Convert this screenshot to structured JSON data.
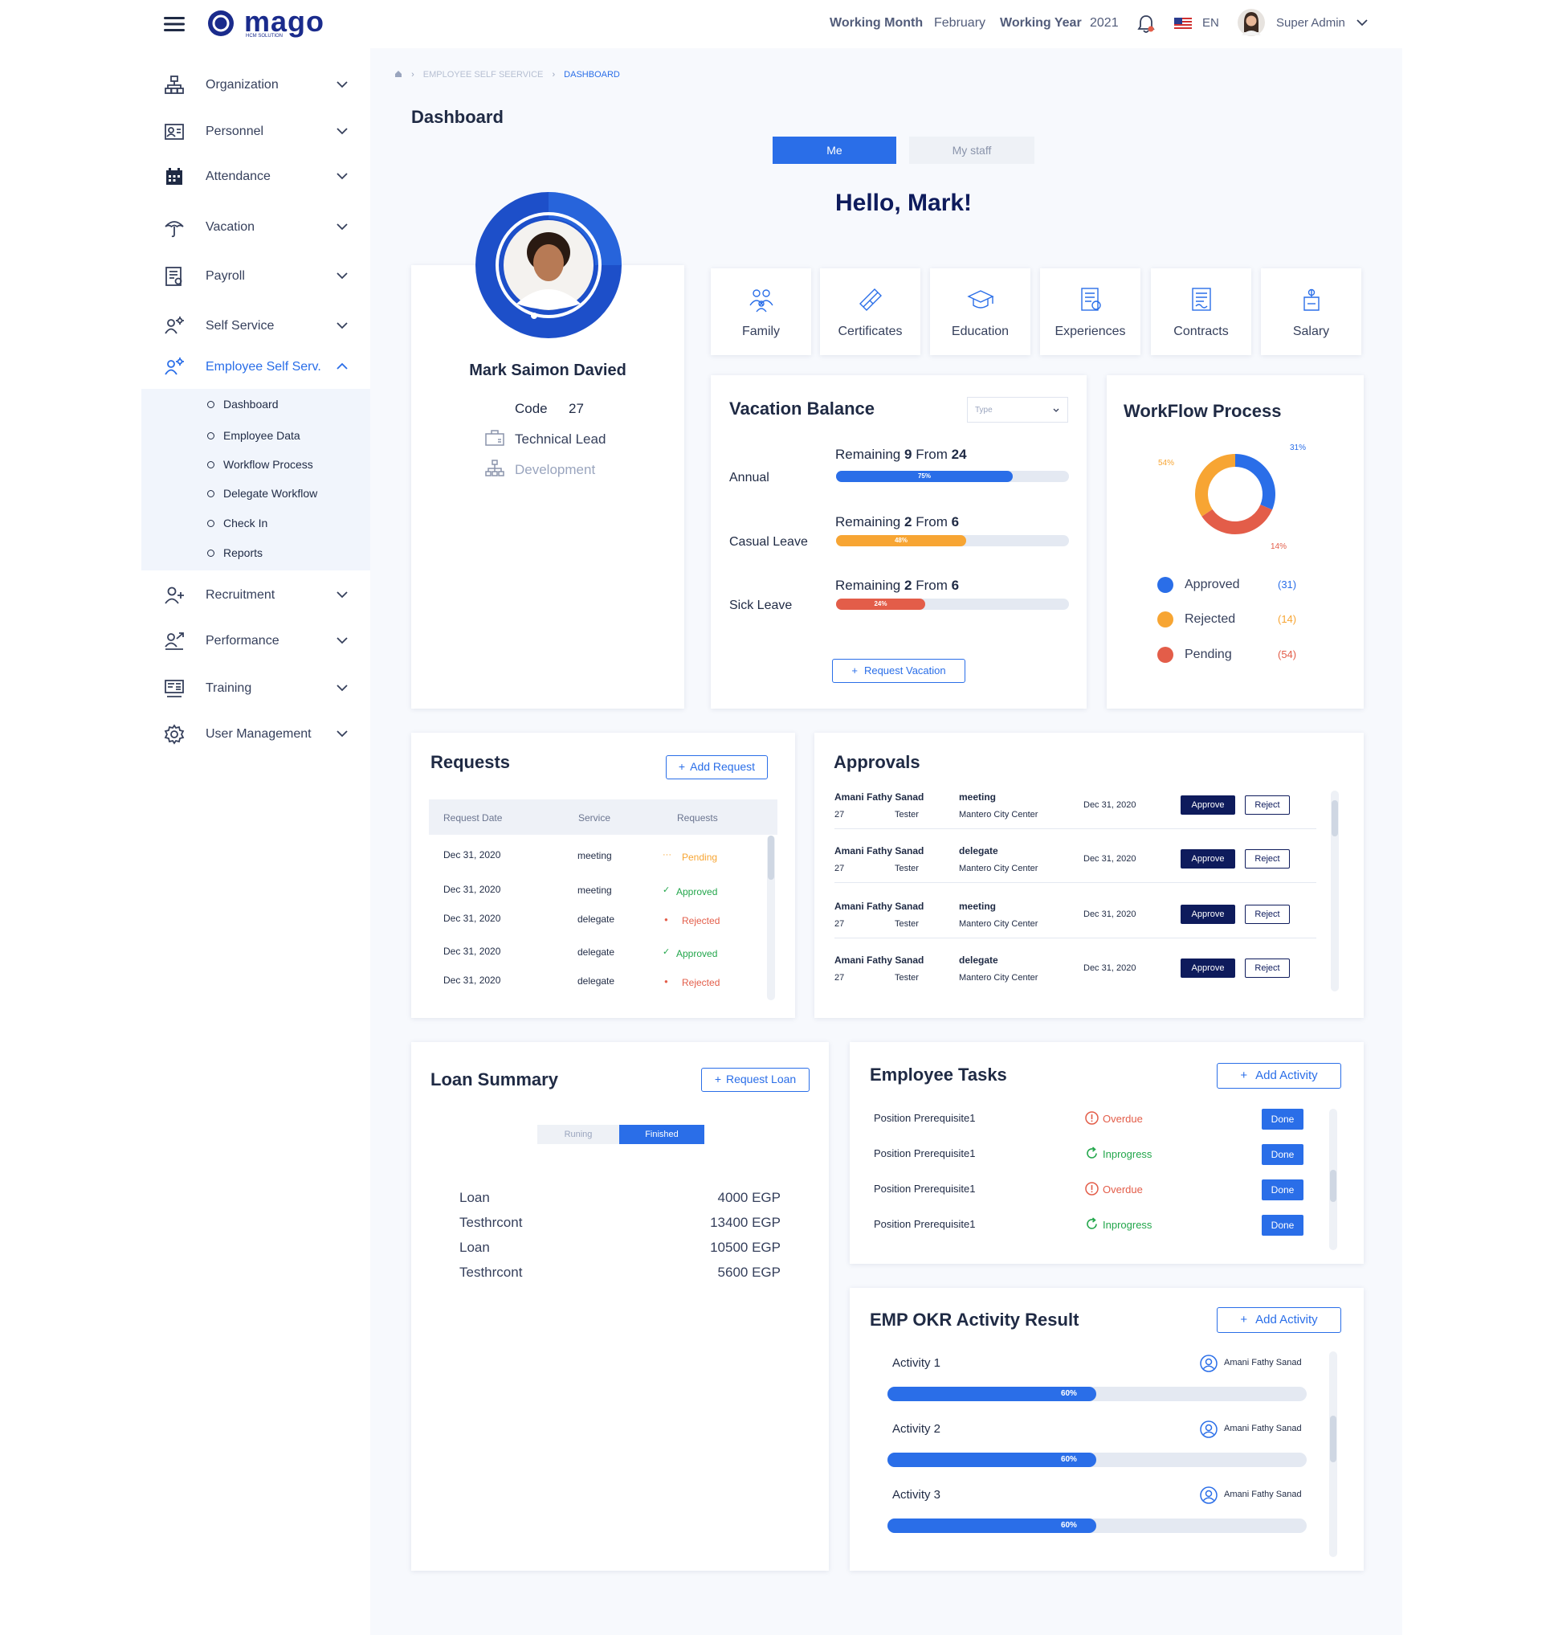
{
  "topbar": {
    "logo_text": "mago",
    "logo_sub": "HCM SOLUTION",
    "working_month_label": "Working Month",
    "working_month_value": "February",
    "working_year_label": "Working Year",
    "working_year_value": "2021",
    "language": "EN",
    "user_name": "Super Admin"
  },
  "sidebar": {
    "items": [
      {
        "label": "Organization",
        "icon": "org-chart-icon"
      },
      {
        "label": "Personnel",
        "icon": "id-card-icon"
      },
      {
        "label": "Attendance",
        "icon": "calendar-icon"
      },
      {
        "label": "Vacation",
        "icon": "umbrella-icon"
      },
      {
        "label": "Payroll",
        "icon": "payroll-icon"
      },
      {
        "label": "Self Service",
        "icon": "self-service-icon"
      },
      {
        "label": "Employee Self Serv.",
        "icon": "employee-self-service-icon"
      },
      {
        "label": "Recruitment",
        "icon": "add-user-icon"
      },
      {
        "label": "Performance",
        "icon": "performance-icon"
      },
      {
        "label": "Training",
        "icon": "training-icon"
      },
      {
        "label": "User  Management",
        "icon": "gear-icon"
      }
    ],
    "submenu": [
      "Dashboard",
      "Employee Data",
      "Workflow Process",
      "Delegate Workflow",
      "Check In",
      "Reports"
    ],
    "active_color": "#2a6ee8"
  },
  "breadcrumb": {
    "parent": "EMPLOYEE SELF SEERVICE",
    "current": "DASHBOARD"
  },
  "page_title": "Dashboard",
  "tabs": {
    "me": "Me",
    "staff": "My staff"
  },
  "greeting": "Hello, Mark!",
  "profile": {
    "name": "Mark Saimon Davied",
    "code_label": "Code",
    "code_value": "27",
    "title": "Technical Lead",
    "department": "Development"
  },
  "quick_links": [
    "Family",
    "Certificates",
    "Education",
    "Experiences",
    "Contracts",
    "Salary"
  ],
  "vacation": {
    "title": "Vacation Balance",
    "type_placeholder": "Type",
    "remaining_word": "Remaining",
    "from_word": "From",
    "items": [
      {
        "label": "Annual",
        "remaining": "9",
        "total": "24",
        "percent": 75,
        "percent_text": "75%",
        "color": "#2a6ee8"
      },
      {
        "label": "Casual Leave",
        "remaining": "2",
        "total": "6",
        "percent": 48,
        "percent_text": "48%",
        "color": "#f7a533"
      },
      {
        "label": "Sick Leave",
        "remaining": "2",
        "total": "6",
        "percent": 24,
        "percent_text": "24%",
        "color": "#e35d49"
      }
    ],
    "button": "Request Vacation"
  },
  "workflow": {
    "title": "WorkFlow Process",
    "pct_top": "31%",
    "pct_left": "54%",
    "pct_bottom": "14%",
    "legend": [
      {
        "label": "Approved",
        "count": "(31)",
        "color": "#2a6ee8"
      },
      {
        "label": "Rejected",
        "count": "(14)",
        "color": "#f7a533"
      },
      {
        "label": "Pending",
        "count": "(54)",
        "color": "#e35d49"
      }
    ]
  },
  "requests": {
    "title": "Requests",
    "button": "Add Request",
    "headers": [
      "Request Date",
      "Service",
      "Requests"
    ],
    "rows": [
      {
        "date": "Dec 31, 2020",
        "service": "meeting",
        "status": "Pending",
        "icon": "pending-dots-icon",
        "color": "#f7a533"
      },
      {
        "date": "Dec 31, 2020",
        "service": "meeting",
        "status": "Approved",
        "icon": "check-icon",
        "color": "#22a64b"
      },
      {
        "date": "Dec 31, 2020",
        "service": "delegate",
        "status": "Rejected",
        "icon": "red-dot-icon",
        "color": "#e35d49"
      },
      {
        "date": "Dec 31, 2020",
        "service": "delegate",
        "status": "Approved",
        "icon": "check-icon",
        "color": "#22a64b"
      },
      {
        "date": "Dec 31, 2020",
        "service": "delegate",
        "status": "Rejected",
        "icon": "red-dot-icon",
        "color": "#e35d49"
      }
    ]
  },
  "approvals": {
    "title": "Approvals",
    "approve_label": "Approve",
    "reject_label": "Reject",
    "rows": [
      {
        "name": "Amani Fathy Sanad",
        "code": "27",
        "role": "Tester",
        "type": "meeting",
        "location": "Mantero City Center",
        "date": "Dec 31, 2020"
      },
      {
        "name": "Amani Fathy Sanad",
        "code": "27",
        "role": "Tester",
        "type": "delegate",
        "location": "Mantero City Center",
        "date": "Dec 31, 2020"
      },
      {
        "name": "Amani Fathy Sanad",
        "code": "27",
        "role": "Tester",
        "type": "meeting",
        "location": "Mantero City Center",
        "date": "Dec 31, 2020"
      },
      {
        "name": "Amani Fathy Sanad",
        "code": "27",
        "role": "Tester",
        "type": "delegate",
        "location": "Mantero City Center",
        "date": "Dec 31, 2020"
      }
    ]
  },
  "loan": {
    "title": "Loan Summary",
    "button": "Request  Loan",
    "toggle_running": "Runing",
    "toggle_finished": "Finished",
    "rows": [
      {
        "label": "Loan",
        "value": "4000 EGP"
      },
      {
        "label": "Testhrcont",
        "value": "13400 EGP"
      },
      {
        "label": "Loan",
        "value": "10500 EGP"
      },
      {
        "label": "Testhrcont",
        "value": "5600 EGP"
      }
    ]
  },
  "tasks": {
    "title": "Employee Tasks",
    "button": "Add  Activity",
    "done_label": "Done",
    "rows": [
      {
        "name": "Position Prerequisite1",
        "status": "Overdue",
        "icon": "alert-icon",
        "color": "#e35d49"
      },
      {
        "name": "Position Prerequisite1",
        "status": "Inprogress",
        "icon": "refresh-icon",
        "color": "#22a64b"
      },
      {
        "name": "Position Prerequisite1",
        "status": "Overdue",
        "icon": "alert-icon",
        "color": "#e35d49"
      },
      {
        "name": "Position Prerequisite1",
        "status": "Inprogress",
        "icon": "refresh-icon",
        "color": "#22a64b"
      }
    ]
  },
  "okr": {
    "title": "EMP OKR Activity Result",
    "button": "Add  Activity",
    "rows": [
      {
        "name": "Activity 1",
        "person": "Amani Fathy Sanad",
        "percent": 60,
        "percent_text": "60%"
      },
      {
        "name": "Activity 2",
        "person": "Amani Fathy Sanad",
        "percent": 60,
        "percent_text": "60%"
      },
      {
        "name": "Activity 3",
        "person": "Amani Fathy Sanad",
        "percent": 60,
        "percent_text": "60%"
      }
    ]
  }
}
